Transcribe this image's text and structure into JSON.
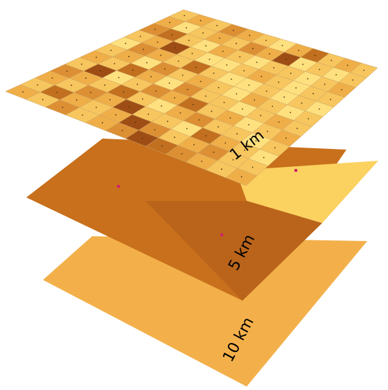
{
  "diagram": {
    "layers": [
      {
        "id": "layer-10km",
        "label": "10 km",
        "color": "#F3B04A"
      },
      {
        "id": "layer-5km",
        "label": "5 km",
        "colors": {
          "main": "#C8701C",
          "dark": "#B9641A",
          "light": "#FBD160"
        }
      },
      {
        "id": "layer-1km",
        "label": "1 km"
      }
    ],
    "grid": {
      "rows": 12,
      "cols": 12,
      "palette": [
        "#FFF58A",
        "#FFE07E",
        "#F7C65E",
        "#EFAE48",
        "#DD8F34",
        "#C2701F",
        "#9E4E14"
      ],
      "levels": [
        [
          2,
          3,
          2,
          4,
          3,
          2,
          1,
          3,
          5,
          2,
          3,
          2
        ],
        [
          3,
          1,
          2,
          3,
          2,
          4,
          3,
          6,
          1,
          2,
          1,
          2
        ],
        [
          4,
          5,
          2,
          1,
          3,
          2,
          1,
          2,
          2,
          1,
          2,
          3
        ],
        [
          2,
          3,
          6,
          2,
          1,
          1,
          2,
          3,
          2,
          1,
          2,
          2
        ],
        [
          1,
          4,
          3,
          2,
          5,
          2,
          1,
          1,
          2,
          1,
          2,
          1
        ],
        [
          2,
          3,
          1,
          4,
          2,
          3,
          2,
          1,
          3,
          2,
          1,
          2
        ],
        [
          3,
          2,
          5,
          3,
          1,
          4,
          2,
          2,
          1,
          2,
          3,
          2
        ],
        [
          2,
          6,
          1,
          2,
          4,
          3,
          5,
          2,
          3,
          1,
          2,
          3
        ],
        [
          4,
          3,
          2,
          5,
          2,
          1,
          3,
          4,
          2,
          2,
          1,
          2
        ],
        [
          3,
          2,
          4,
          3,
          6,
          2,
          2,
          1,
          5,
          3,
          2,
          1
        ],
        [
          2,
          5,
          3,
          2,
          3,
          6,
          4,
          2,
          3,
          4,
          2,
          2
        ],
        [
          3,
          2,
          4,
          2,
          3,
          4,
          6,
          5,
          4,
          3,
          2,
          3
        ]
      ]
    }
  }
}
